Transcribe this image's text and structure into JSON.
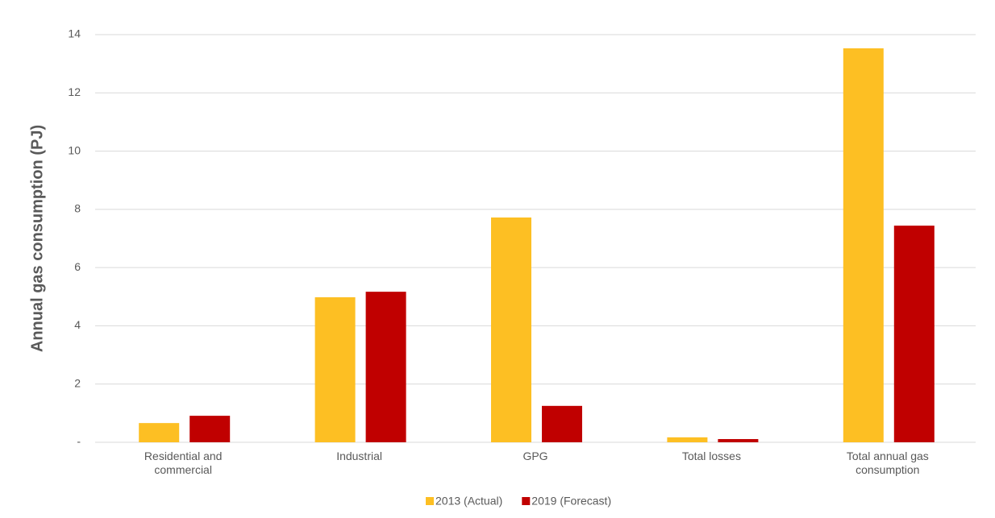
{
  "chart_data": {
    "type": "bar",
    "y_label": "Annual gas consumption (PJ)",
    "categories": [
      "Residential and commercial",
      "Industrial",
      "GPG",
      "Total losses",
      "Total annual gas consumption"
    ],
    "series": [
      {
        "name": "2013 (Actual)",
        "color": "#fdbf23",
        "values": [
          0.66,
          4.98,
          7.72,
          0.17,
          13.53
        ]
      },
      {
        "name": "2019 (Forecast)",
        "color": "#c00000",
        "values": [
          0.91,
          5.17,
          1.25,
          0.11,
          7.44
        ]
      }
    ],
    "ylim": [
      0,
      14
    ],
    "yticks": [
      {
        "value": 0,
        "label": "-"
      },
      2,
      4,
      6,
      8,
      10,
      12,
      14
    ],
    "grid": true,
    "legend": "bottom"
  }
}
